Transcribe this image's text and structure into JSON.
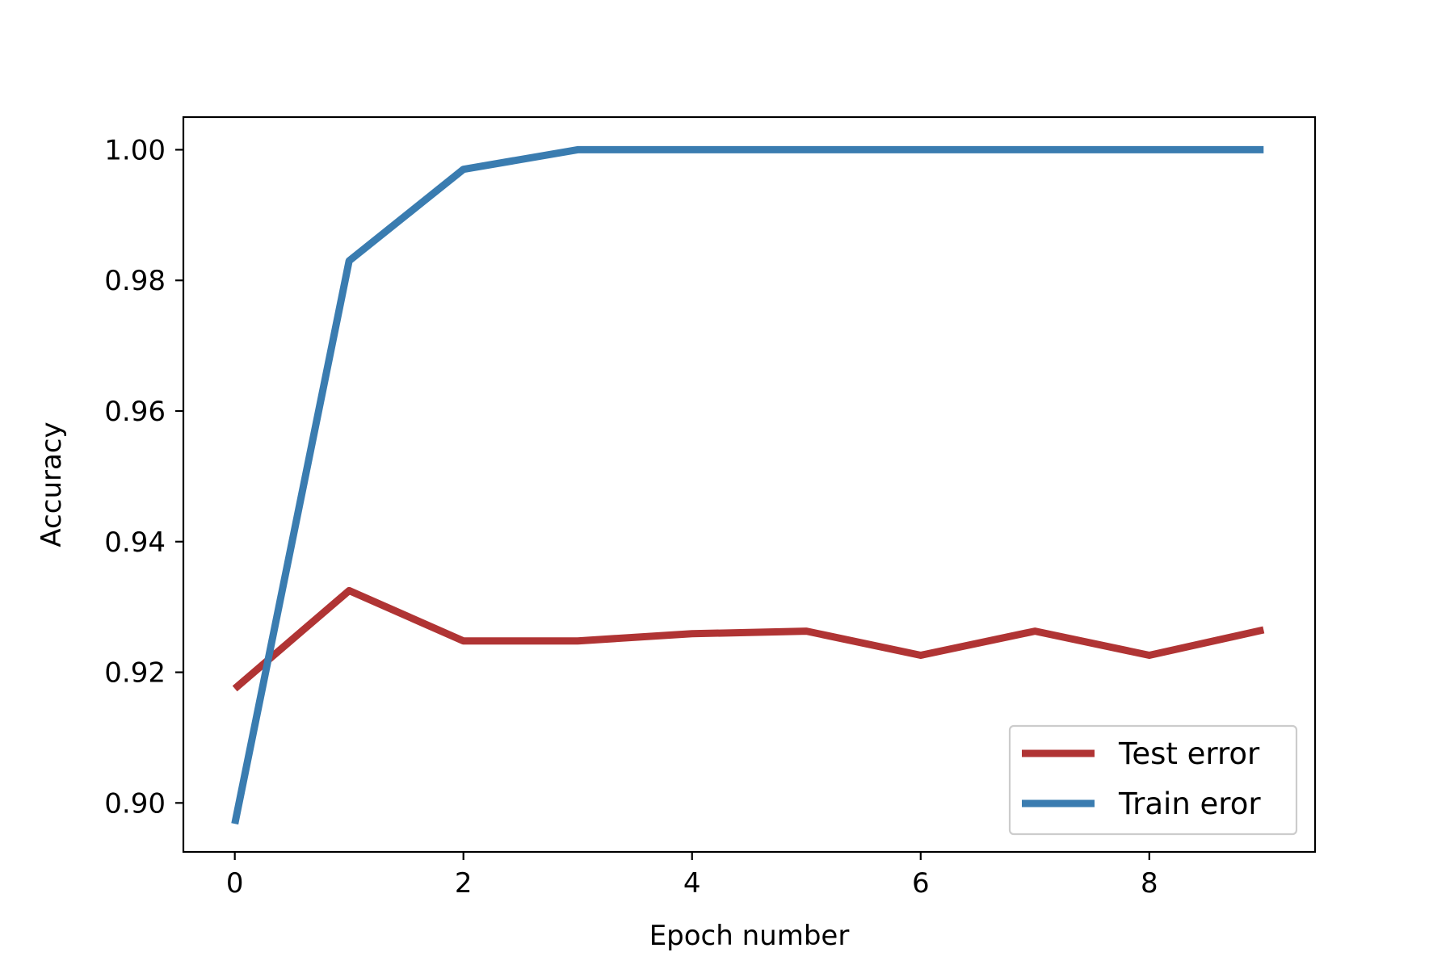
{
  "chart_data": {
    "type": "line",
    "title": "",
    "xlabel": "Epoch number",
    "ylabel": "Accuracy",
    "x": [
      0,
      1,
      2,
      3,
      4,
      5,
      6,
      7,
      8,
      9
    ],
    "xlim": [
      -0.45,
      9.45
    ],
    "ylim": [
      0.8925,
      1.005
    ],
    "xticks": [
      0,
      2,
      4,
      6,
      8
    ],
    "xtick_labels": [
      "0",
      "2",
      "4",
      "6",
      "8"
    ],
    "yticks": [
      0.9,
      0.92,
      0.94,
      0.96,
      0.98,
      1.0
    ],
    "ytick_labels": [
      "0.90",
      "0.92",
      "0.94",
      "0.96",
      "0.98",
      "1.00"
    ],
    "grid": false,
    "legend_position": "lower-right",
    "series": [
      {
        "name": "Test error",
        "color": "#b03434",
        "values": [
          0.9175,
          0.9325,
          0.9248,
          0.9248,
          0.9259,
          0.9263,
          0.9226,
          0.9263,
          0.9226,
          0.9265
        ]
      },
      {
        "name": "Train eror",
        "color": "#3a7cb0",
        "values": [
          0.8968,
          0.983,
          0.997,
          1.0,
          1.0,
          1.0,
          1.0,
          1.0,
          1.0,
          1.0
        ]
      }
    ]
  }
}
